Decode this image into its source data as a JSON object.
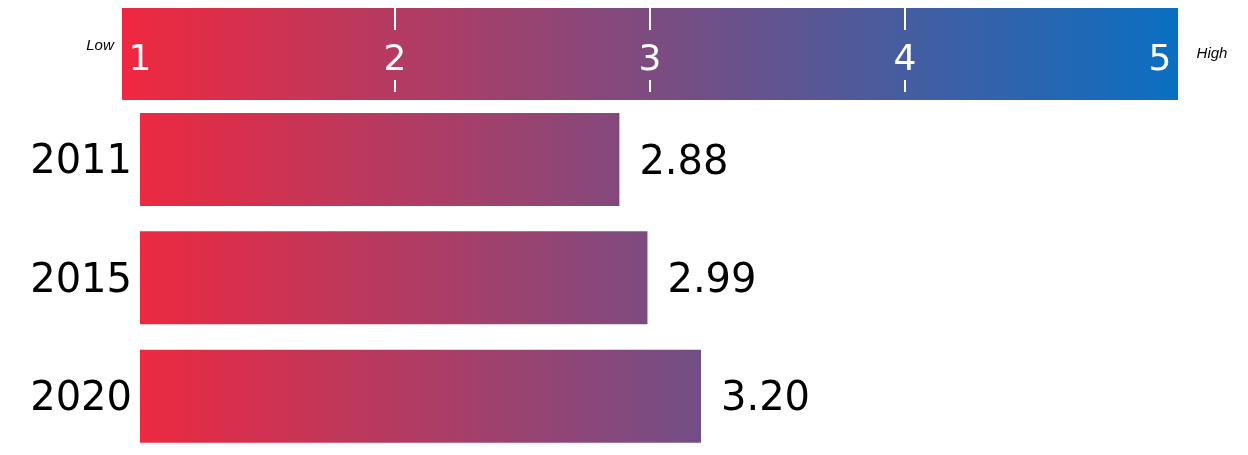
{
  "chart_data": {
    "type": "bar",
    "orientation": "horizontal",
    "categories": [
      "2011",
      "2015",
      "2020"
    ],
    "values": [
      2.88,
      2.99,
      3.2
    ],
    "value_labels": [
      "2.88",
      "2.99",
      "3.20"
    ],
    "color": "#f0283f",
    "xlim": [
      1,
      5
    ],
    "xticks": [
      1,
      2,
      3,
      4,
      5
    ],
    "annotations": [
      "Low",
      "High"
    ]
  }
}
